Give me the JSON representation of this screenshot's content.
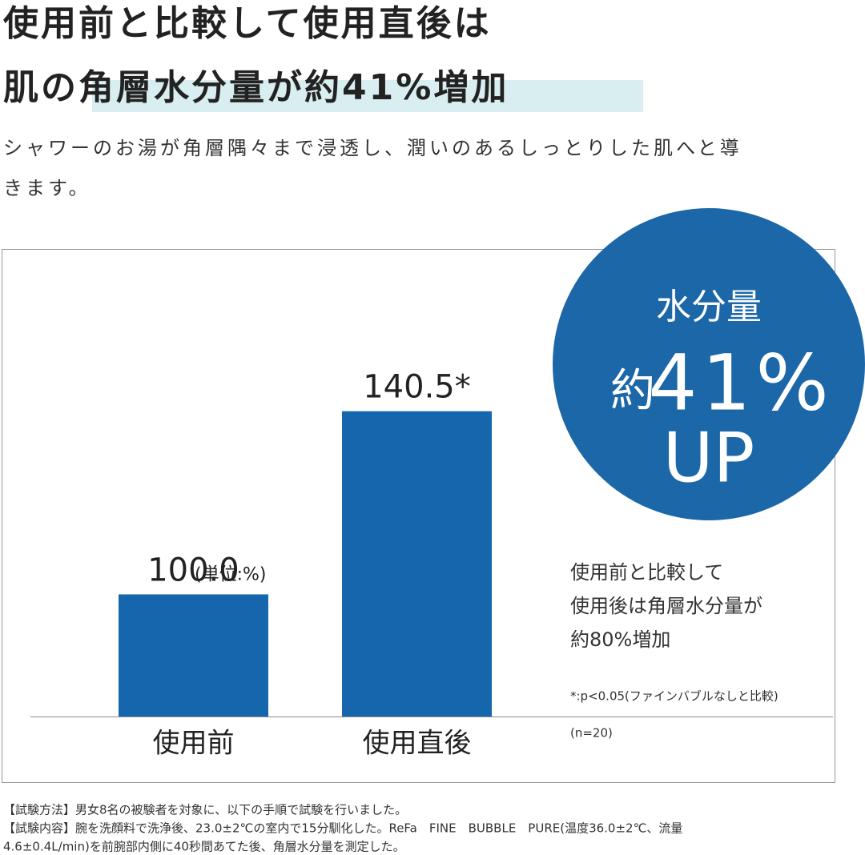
{
  "header": {
    "title_lines": [
      "使用前と比較して使用直後は",
      "肌の角層水分量が約41%増加"
    ],
    "subtitle_lines": [
      "シャワーのお湯が角層隅々まで浸透し、潤いのあるしっとりした肌へと導",
      "きます。"
    ]
  },
  "chart_data": {
    "type": "bar",
    "categories": [
      "使用前",
      "使用直後"
    ],
    "values": [
      100.0,
      140.5
    ],
    "value_labels": [
      "100.0",
      "140.5*"
    ],
    "unit_label": "(単位:%)",
    "color": "#1566ad",
    "ylim": [
      73,
      170
    ]
  },
  "badge": {
    "line1": "水分量",
    "prefix": "約",
    "number": "41%",
    "line3": "UP"
  },
  "notes": {
    "lines": [
      "使用前と比較して",
      "使用後は角層水分量が",
      "約80%増加"
    ],
    "footnote": "*:p<0.05(ファインバブルなしと比較)",
    "sample": "(n=20)"
  },
  "footer": {
    "lines": [
      "【試験方法】男女8名の被験者を対象に、以下の手順で試験を行いました。",
      "【試験内容】腕を洗顔料で洗浄後、23.0±2℃の室内で15分馴化した。ReFa　FINE　BUBBLE　PURE(温度36.0±2℃、流量",
      "4.6±0.4L/min)を前腕部内側に40秒間あてた後、角層水分量を測定した。"
    ]
  }
}
